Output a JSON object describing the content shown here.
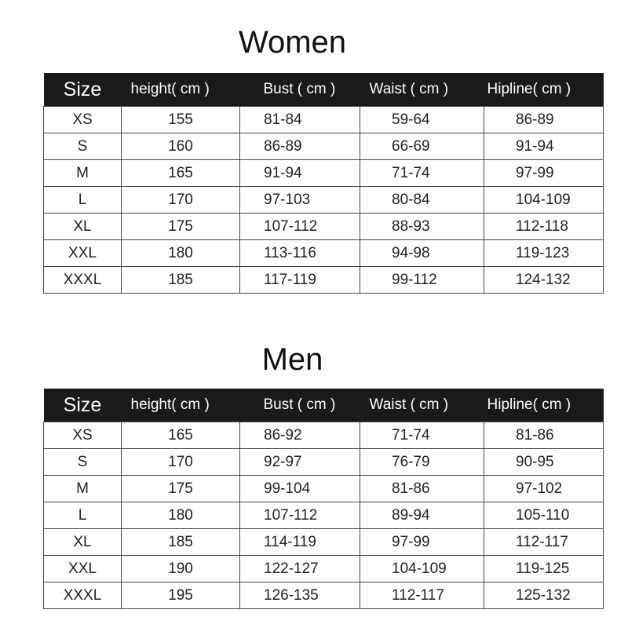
{
  "columns": [
    "Size",
    "height( cm )",
    "Bust ( cm )",
    "Waist ( cm )",
    "Hipline( cm )"
  ],
  "women": {
    "title": "Women",
    "rows": [
      [
        "XS",
        "155",
        "81-84",
        "59-64",
        "86-89"
      ],
      [
        "S",
        "160",
        "86-89",
        "66-69",
        "91-94"
      ],
      [
        "M",
        "165",
        "91-94",
        "71-74",
        "97-99"
      ],
      [
        "L",
        "170",
        "97-103",
        "80-84",
        "104-109"
      ],
      [
        "XL",
        "175",
        "107-112",
        "88-93",
        "112-118"
      ],
      [
        "XXL",
        "180",
        "113-116",
        "94-98",
        "119-123"
      ],
      [
        "XXXL",
        "185",
        "117-119",
        "99-112",
        "124-132"
      ]
    ]
  },
  "men": {
    "title": "Men",
    "rows": [
      [
        "XS",
        "165",
        "86-92",
        "71-74",
        "81-86"
      ],
      [
        "S",
        "170",
        "92-97",
        "76-79",
        "90-95"
      ],
      [
        "M",
        "175",
        "99-104",
        "81-86",
        "97-102"
      ],
      [
        "L",
        "180",
        "107-112",
        "89-94",
        "105-110"
      ],
      [
        "XL",
        "185",
        "114-119",
        "97-99",
        "112-117"
      ],
      [
        "XXL",
        "190",
        "122-127",
        "104-109",
        "119-125"
      ],
      [
        "XXXL",
        "195",
        "126-135",
        "112-117",
        "125-132"
      ]
    ]
  }
}
